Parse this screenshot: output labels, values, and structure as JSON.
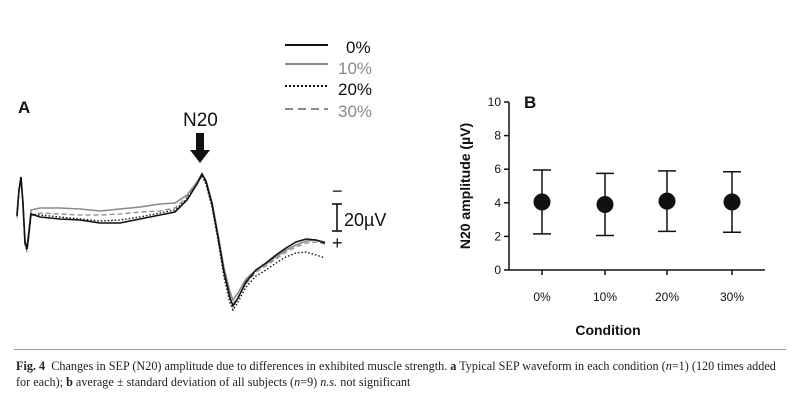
{
  "colors": {
    "c0": "#111111",
    "c10": "#8a8a8a",
    "c20": "#111111",
    "c30": "#8a8a8a",
    "marker": "#111111",
    "axis": "#111111"
  },
  "chart_data": [
    {
      "type": "line",
      "panel_label": "A",
      "annotation": "N20",
      "scale_bar": {
        "label": "20µV",
        "top_sign": "−",
        "bottom_sign": "+"
      },
      "legend": [
        {
          "label": "0%",
          "style": "solid",
          "color": "#111111"
        },
        {
          "label": "10%",
          "style": "solid",
          "color": "#8a8a8a"
        },
        {
          "label": "20%",
          "style": "dotted",
          "color": "#111111"
        },
        {
          "label": "30%",
          "style": "dashed",
          "color": "#8a8a8a"
        }
      ],
      "axes_shown": false
    },
    {
      "type": "scatter",
      "panel_label": "B",
      "categories": [
        "0%",
        "10%",
        "20%",
        "30%"
      ],
      "series": [
        {
          "values": [
            4.05,
            3.9,
            4.1,
            4.05
          ],
          "error": [
            1.9,
            1.85,
            1.8,
            1.8
          ]
        }
      ],
      "xlabel": "Condition",
      "ylabel": "N20 amplitude (µV)",
      "ylim": [
        0,
        10
      ],
      "yticks": [
        0,
        2,
        4,
        6,
        8,
        10
      ],
      "grid": false
    }
  ],
  "caption": {
    "fig_label": "Fig. 4",
    "text_main": "Changes in SEP (N20) amplitude due to differences in exhibited muscle strength.",
    "a_label": "a",
    "a_text": "Typical SEP waveform in each condition (",
    "a_n": "n",
    "a_n_val": "=1) (120 times added for each);",
    "b_label": "b",
    "b_text": "average ± standard deviation of all subjects (",
    "b_n": "n",
    "b_n_val": "=9)",
    "ns": "n.s.",
    "ns_text": "not significant"
  }
}
